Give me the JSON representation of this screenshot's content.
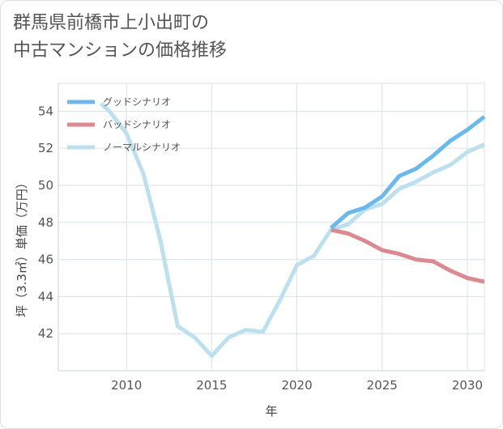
{
  "title_lines": [
    "群馬県前橋市上小出町の",
    "中古マンションの価格推移"
  ],
  "chart_data": {
    "type": "line",
    "title": "群馬県前橋市上小出町の中古マンションの価格推移",
    "xlabel": "年",
    "ylabel": "坪（3.3㎡）単価（万円）",
    "xlim": [
      2006,
      2031
    ],
    "ylim": [
      40,
      55.5
    ],
    "x_ticks": [
      2010,
      2015,
      2020,
      2025,
      2030
    ],
    "y_ticks": [
      42,
      44,
      46,
      48,
      50,
      52,
      54
    ],
    "series": [
      {
        "name": "グッドシナリオ",
        "color": "#6cb8ea",
        "x": [
          2022,
          2023,
          2024,
          2025,
          2026,
          2027,
          2028,
          2029,
          2030,
          2031
        ],
        "values": [
          47.7,
          48.5,
          48.8,
          49.4,
          50.5,
          50.9,
          51.6,
          52.4,
          53.0,
          53.7
        ]
      },
      {
        "name": "バッドシナリオ",
        "color": "#dc8a92",
        "x": [
          2022,
          2023,
          2024,
          2025,
          2026,
          2027,
          2028,
          2029,
          2030,
          2031
        ],
        "values": [
          47.6,
          47.4,
          47.0,
          46.5,
          46.3,
          46.0,
          45.9,
          45.4,
          45.0,
          44.8
        ]
      },
      {
        "name": "ノーマルシナリオ",
        "color": "#bde0ee",
        "x": [
          2008.5,
          2009,
          2010,
          2011,
          2012,
          2013,
          2014,
          2015,
          2016,
          2017,
          2018,
          2019,
          2020,
          2021,
          2022,
          2023,
          2024,
          2025,
          2026,
          2027,
          2028,
          2029,
          2030,
          2031
        ],
        "values": [
          54.4,
          54.0,
          52.8,
          50.6,
          47.0,
          42.4,
          41.8,
          40.8,
          41.8,
          42.2,
          42.1,
          43.8,
          45.7,
          46.2,
          47.6,
          47.9,
          48.7,
          49.0,
          49.8,
          50.2,
          50.7,
          51.1,
          51.8,
          52.2
        ]
      }
    ],
    "legend_position": "top-left",
    "grid": true
  }
}
